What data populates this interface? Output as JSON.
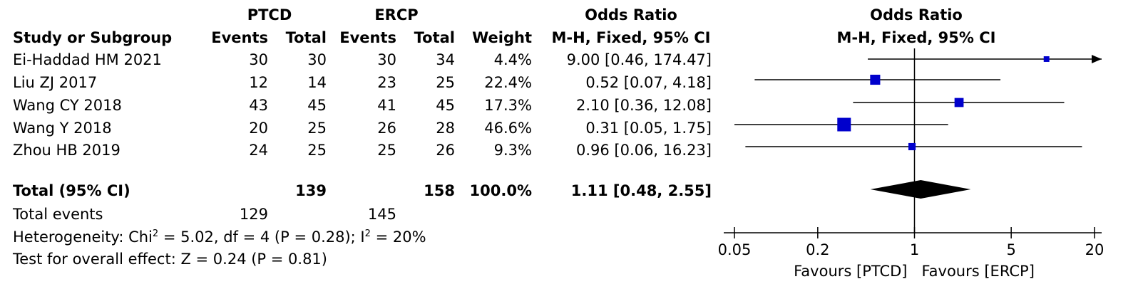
{
  "header": {
    "group1": "PTCD",
    "group2": "ERCP",
    "or_title": "Odds Ratio",
    "or_subtitle": "M-H, Fixed, 95% CI",
    "plot_title": "Odds Ratio",
    "plot_subtitle": "M-H, Fixed, 95% CI",
    "study": "Study or Subgroup",
    "events": "Events",
    "total": "Total",
    "weight": "Weight"
  },
  "studies": [
    {
      "name": "Ei-Haddad HM 2021",
      "e1": "30",
      "t1": "30",
      "e2": "30",
      "t2": "34",
      "weight": "4.4%",
      "ci": "9.00 [0.46, 174.47]"
    },
    {
      "name": "Liu ZJ 2017",
      "e1": "12",
      "t1": "14",
      "e2": "23",
      "t2": "25",
      "weight": "22.4%",
      "ci": "0.52 [0.07, 4.18]"
    },
    {
      "name": "Wang CY 2018",
      "e1": "43",
      "t1": "45",
      "e2": "41",
      "t2": "45",
      "weight": "17.3%",
      "ci": "2.10 [0.36, 12.08]"
    },
    {
      "name": "Wang Y 2018",
      "e1": "20",
      "t1": "25",
      "e2": "26",
      "t2": "28",
      "weight": "46.6%",
      "ci": "0.31 [0.05, 1.75]"
    },
    {
      "name": "Zhou HB 2019",
      "e1": "24",
      "t1": "25",
      "e2": "25",
      "t2": "26",
      "weight": "9.3%",
      "ci": "0.96 [0.06, 16.23]"
    }
  ],
  "total": {
    "label": "Total (95% CI)",
    "t1": "139",
    "t2": "158",
    "weight": "100.0%",
    "ci": "1.11 [0.48, 2.55]"
  },
  "total_events": {
    "label": "Total events",
    "e1": "129",
    "e2": "145"
  },
  "heterogeneity": {
    "pre": "Heterogeneity: Chi",
    "sup1": "2",
    "mid": " = 5.02, df = 4 (P = 0.28); I",
    "sup2": "2",
    "post": " = 20%"
  },
  "overall_effect": "Test for overall effect: Z = 0.24 (P = 0.81)",
  "axis": {
    "ticks": [
      "0.05",
      "0.2",
      "1",
      "5",
      "20"
    ],
    "favours_left": "Favours [PTCD]",
    "favours_right": "Favours [ERCP]"
  },
  "colors": {
    "marker": "#0000cc",
    "diamond": "#000000",
    "line": "#000000"
  },
  "chart_data": {
    "type": "forest",
    "scale": "log",
    "xlim": [
      0.05,
      20
    ],
    "ticks": [
      0.05,
      0.2,
      1,
      5,
      20
    ],
    "null_value": 1,
    "studies": [
      {
        "name": "Ei-Haddad HM 2021",
        "or": 9.0,
        "lo": 0.46,
        "hi": 174.47,
        "weight": 4.4
      },
      {
        "name": "Liu ZJ 2017",
        "or": 0.52,
        "lo": 0.07,
        "hi": 4.18,
        "weight": 22.4
      },
      {
        "name": "Wang CY 2018",
        "or": 2.1,
        "lo": 0.36,
        "hi": 12.08,
        "weight": 17.3
      },
      {
        "name": "Wang Y 2018",
        "or": 0.31,
        "lo": 0.05,
        "hi": 1.75,
        "weight": 46.6
      },
      {
        "name": "Zhou HB 2019",
        "or": 0.96,
        "lo": 0.06,
        "hi": 16.23,
        "weight": 9.3
      }
    ],
    "pooled": {
      "or": 1.11,
      "lo": 0.48,
      "hi": 2.55
    }
  }
}
